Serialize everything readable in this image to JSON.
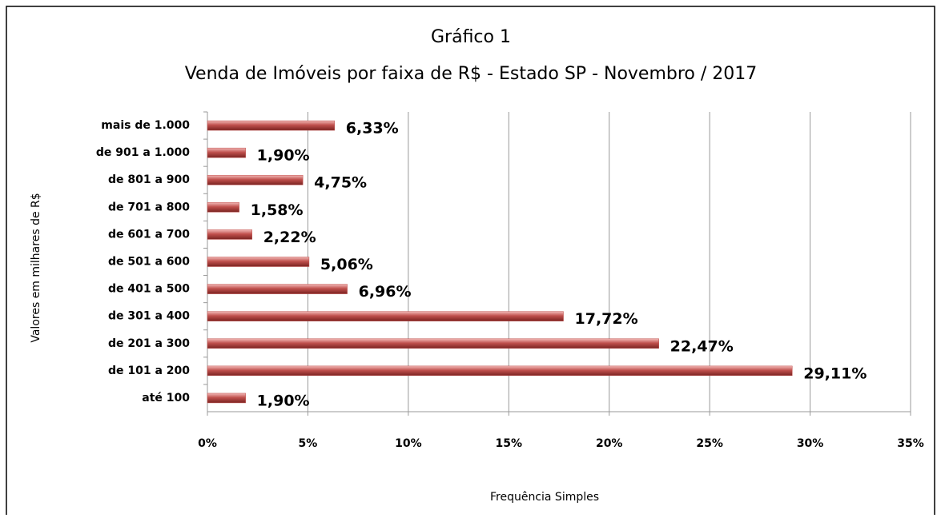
{
  "chart_data": {
    "type": "hbar",
    "title": "Gráfico 1",
    "subtitle": "Venda de Imóveis por faixa de R$ - Estado SP - Novembro / 2017",
    "x_label": "Frequência Simples",
    "y_label": "Valores em milhares de R$",
    "categories": [
      "mais de 1.000",
      "de 901 a 1.000",
      "de 801 a 900",
      "de 701 a 800",
      "de 601 a 700",
      "de 501 a 600",
      "de 401 a 500",
      "de 301 a 400",
      "de 201 a 300",
      "de 101 a 200",
      "até 100"
    ],
    "values": [
      6.33,
      1.9,
      4.75,
      1.58,
      2.22,
      5.06,
      6.96,
      17.72,
      22.47,
      29.11,
      1.9
    ],
    "value_labels": [
      "6,33%",
      "1,90%",
      "4,75%",
      "1,58%",
      "2,22%",
      "5,06%",
      "6,96%",
      "17,72%",
      "22,47%",
      "29,11%",
      "1,90%"
    ],
    "color": "#c0504d",
    "xlim": [
      0,
      35
    ],
    "xticks": [
      {
        "value": 0,
        "label": "0%"
      },
      {
        "value": 5,
        "label": "5%"
      },
      {
        "value": 10,
        "label": "10%"
      },
      {
        "value": 15,
        "label": "15%"
      },
      {
        "value": 20,
        "label": "20%"
      },
      {
        "value": 25,
        "label": "25%"
      },
      {
        "value": 30,
        "label": "30%"
      },
      {
        "value": 35,
        "label": "35%"
      }
    ],
    "grid": true
  }
}
